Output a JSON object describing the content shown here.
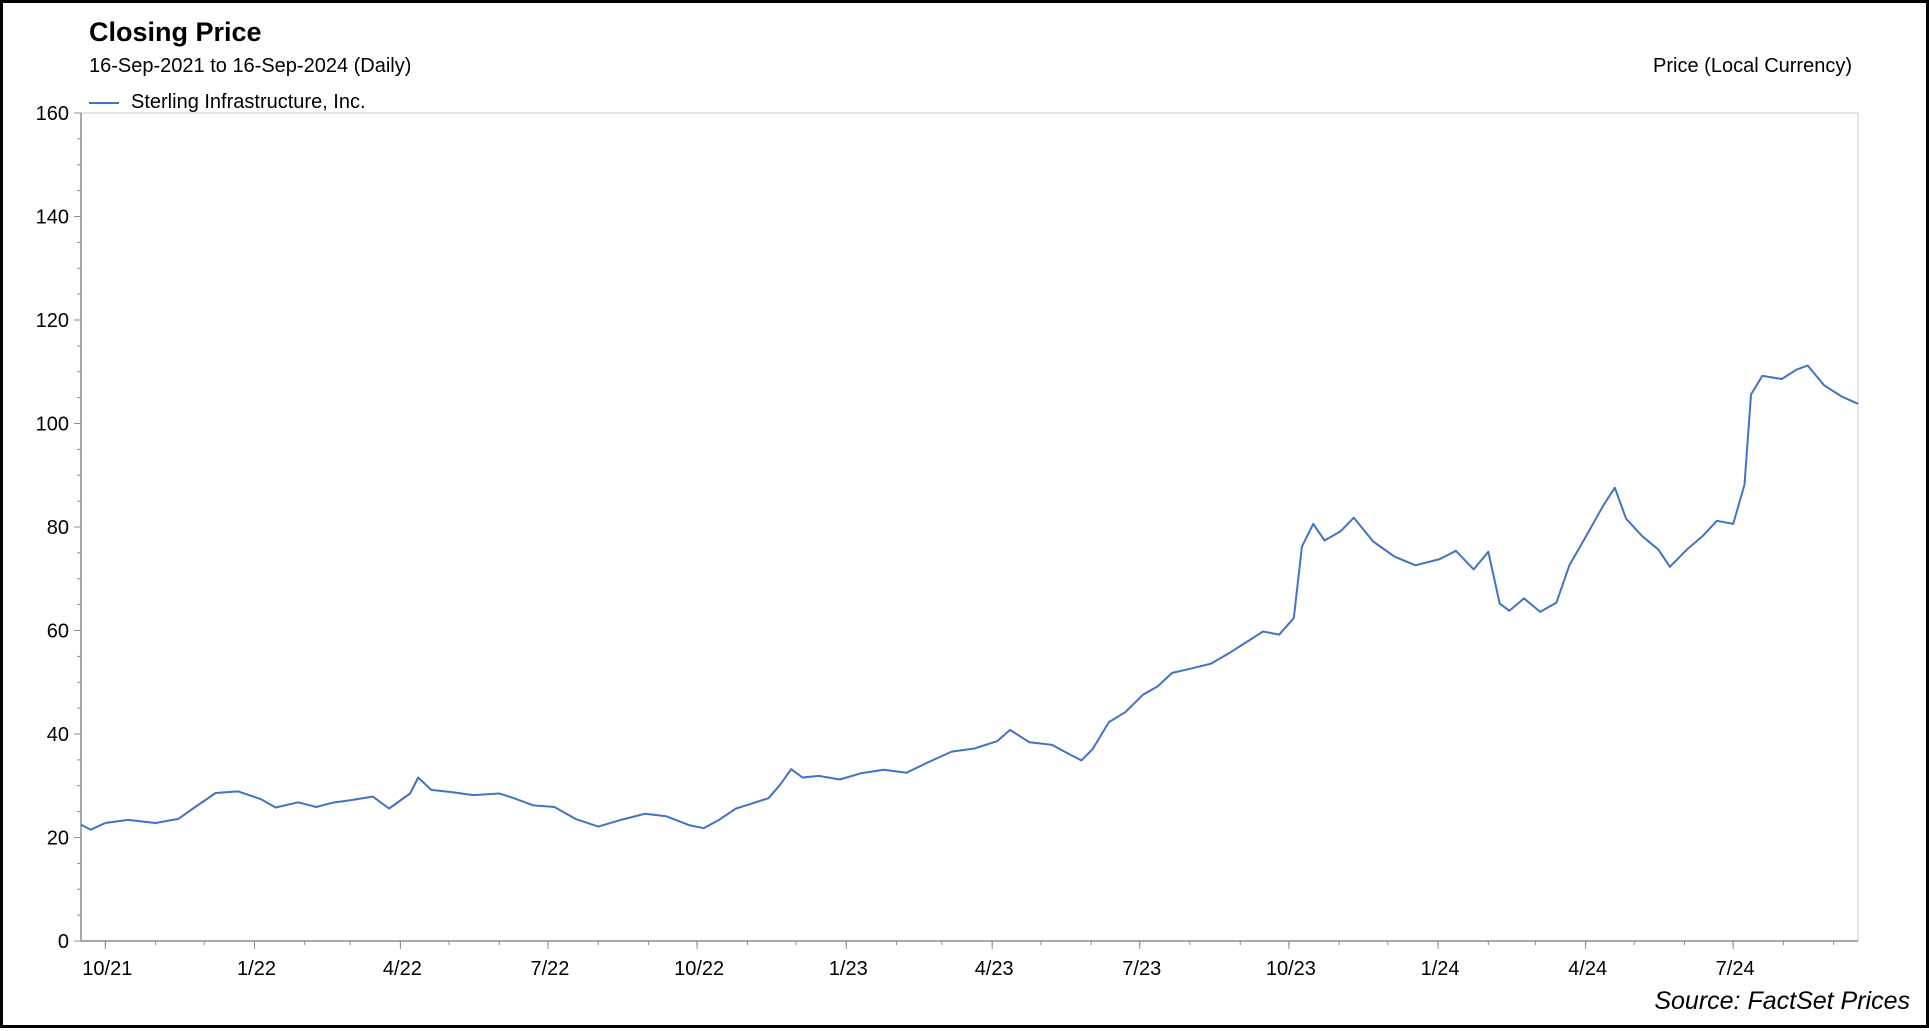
{
  "chart_data": {
    "type": "line",
    "title": "Closing Price",
    "subtitle": "16-Sep-2021 to 16-Sep-2024 (Daily)",
    "ylabel": "Price (Local Currency)",
    "source": "Source: FactSet Prices",
    "legend": {
      "position": "top-left",
      "entries": [
        "Sterling Infrastructure, Inc."
      ]
    },
    "grid": false,
    "color": "#4472c4",
    "xlim": [
      "2021-09-16",
      "2024-09-16"
    ],
    "ylim": [
      0,
      160
    ],
    "y_ticks": [
      0,
      20,
      40,
      60,
      80,
      100,
      120,
      140,
      160
    ],
    "x_ticks": [
      {
        "label": "10/21",
        "date": "2021-10-01"
      },
      {
        "label": "1/22",
        "date": "2022-01-01"
      },
      {
        "label": "4/22",
        "date": "2022-04-01"
      },
      {
        "label": "7/22",
        "date": "2022-07-01"
      },
      {
        "label": "10/22",
        "date": "2022-10-01"
      },
      {
        "label": "1/23",
        "date": "2023-01-01"
      },
      {
        "label": "4/23",
        "date": "2023-04-01"
      },
      {
        "label": "7/23",
        "date": "2023-07-01"
      },
      {
        "label": "10/23",
        "date": "2023-10-01"
      },
      {
        "label": "1/24",
        "date": "2024-01-01"
      },
      {
        "label": "4/24",
        "date": "2024-04-01"
      },
      {
        "label": "7/24",
        "date": "2024-07-01"
      }
    ],
    "series": [
      {
        "name": "Sterling Infrastructure, Inc.",
        "points": [
          [
            "2021-09-16",
            22.5
          ],
          [
            "2021-09-22",
            21.5
          ],
          [
            "2021-10-01",
            22.8
          ],
          [
            "2021-10-15",
            23.4
          ],
          [
            "2021-11-01",
            22.8
          ],
          [
            "2021-11-15",
            23.6
          ],
          [
            "2021-11-25",
            25.8
          ],
          [
            "2021-12-08",
            28.6
          ],
          [
            "2021-12-22",
            28.9
          ],
          [
            "2022-01-05",
            27.4
          ],
          [
            "2022-01-14",
            25.8
          ],
          [
            "2022-01-28",
            26.8
          ],
          [
            "2022-02-08",
            25.9
          ],
          [
            "2022-02-18",
            26.7
          ],
          [
            "2022-03-01",
            27.2
          ],
          [
            "2022-03-15",
            27.9
          ],
          [
            "2022-03-25",
            25.6
          ],
          [
            "2022-04-07",
            28.5
          ],
          [
            "2022-04-12",
            31.6
          ],
          [
            "2022-04-20",
            29.2
          ],
          [
            "2022-05-02",
            28.8
          ],
          [
            "2022-05-16",
            28.2
          ],
          [
            "2022-06-01",
            28.5
          ],
          [
            "2022-06-10",
            27.6
          ],
          [
            "2022-06-22",
            26.2
          ],
          [
            "2022-07-05",
            25.9
          ],
          [
            "2022-07-18",
            23.6
          ],
          [
            "2022-08-01",
            22.1
          ],
          [
            "2022-08-15",
            23.4
          ],
          [
            "2022-08-30",
            24.6
          ],
          [
            "2022-09-12",
            24.1
          ],
          [
            "2022-09-26",
            22.4
          ],
          [
            "2022-10-05",
            21.8
          ],
          [
            "2022-10-14",
            23.3
          ],
          [
            "2022-10-25",
            25.6
          ],
          [
            "2022-11-03",
            26.5
          ],
          [
            "2022-11-14",
            27.6
          ],
          [
            "2022-11-21",
            30.1
          ],
          [
            "2022-11-28",
            33.2
          ],
          [
            "2022-12-05",
            31.6
          ],
          [
            "2022-12-15",
            31.9
          ],
          [
            "2022-12-28",
            31.2
          ],
          [
            "2023-01-10",
            32.4
          ],
          [
            "2023-01-24",
            33.1
          ],
          [
            "2023-02-07",
            32.5
          ],
          [
            "2023-02-21",
            34.6
          ],
          [
            "2023-03-07",
            36.6
          ],
          [
            "2023-03-21",
            37.2
          ],
          [
            "2023-04-04",
            38.6
          ],
          [
            "2023-04-12",
            40.8
          ],
          [
            "2023-04-24",
            38.4
          ],
          [
            "2023-05-08",
            37.9
          ],
          [
            "2023-05-18",
            36.2
          ],
          [
            "2023-05-26",
            34.9
          ],
          [
            "2023-06-02",
            37.1
          ],
          [
            "2023-06-12",
            42.3
          ],
          [
            "2023-06-22",
            44.2
          ],
          [
            "2023-07-03",
            47.6
          ],
          [
            "2023-07-12",
            49.2
          ],
          [
            "2023-07-21",
            51.8
          ],
          [
            "2023-08-01",
            52.6
          ],
          [
            "2023-08-14",
            53.6
          ],
          [
            "2023-08-25",
            55.6
          ],
          [
            "2023-09-05",
            57.8
          ],
          [
            "2023-09-15",
            59.8
          ],
          [
            "2023-09-25",
            59.2
          ],
          [
            "2023-10-04",
            62.4
          ],
          [
            "2023-10-09",
            76.2
          ],
          [
            "2023-10-16",
            80.6
          ],
          [
            "2023-10-23",
            77.4
          ],
          [
            "2023-11-02",
            79.2
          ],
          [
            "2023-11-10",
            81.8
          ],
          [
            "2023-11-22",
            77.2
          ],
          [
            "2023-12-05",
            74.3
          ],
          [
            "2023-12-18",
            72.6
          ],
          [
            "2024-01-02",
            73.8
          ],
          [
            "2024-01-12",
            75.4
          ],
          [
            "2024-01-23",
            71.8
          ],
          [
            "2024-02-01",
            75.2
          ],
          [
            "2024-02-08",
            65.2
          ],
          [
            "2024-02-14",
            63.8
          ],
          [
            "2024-02-23",
            66.2
          ],
          [
            "2024-03-04",
            63.6
          ],
          [
            "2024-03-14",
            65.4
          ],
          [
            "2024-03-22",
            72.6
          ],
          [
            "2024-04-02",
            78.6
          ],
          [
            "2024-04-12",
            84.2
          ],
          [
            "2024-04-19",
            87.6
          ],
          [
            "2024-04-26",
            81.6
          ],
          [
            "2024-05-06",
            78.2
          ],
          [
            "2024-05-16",
            75.6
          ],
          [
            "2024-05-23",
            72.3
          ],
          [
            "2024-06-03",
            75.8
          ],
          [
            "2024-06-12",
            78.2
          ],
          [
            "2024-06-21",
            81.2
          ],
          [
            "2024-07-01",
            80.6
          ],
          [
            "2024-07-08",
            88.2
          ],
          [
            "2024-07-12",
            105.6
          ],
          [
            "2024-07-19",
            109.2
          ],
          [
            "2024-07-31",
            108.6
          ],
          [
            "2024-08-09",
            110.4
          ],
          [
            "2024-08-16",
            111.2
          ],
          [
            "2024-08-26",
            107.4
          ],
          [
            "2024-09-06",
            105.2
          ],
          [
            "2024-09-16",
            103.8
          ]
        ]
      }
    ]
  }
}
